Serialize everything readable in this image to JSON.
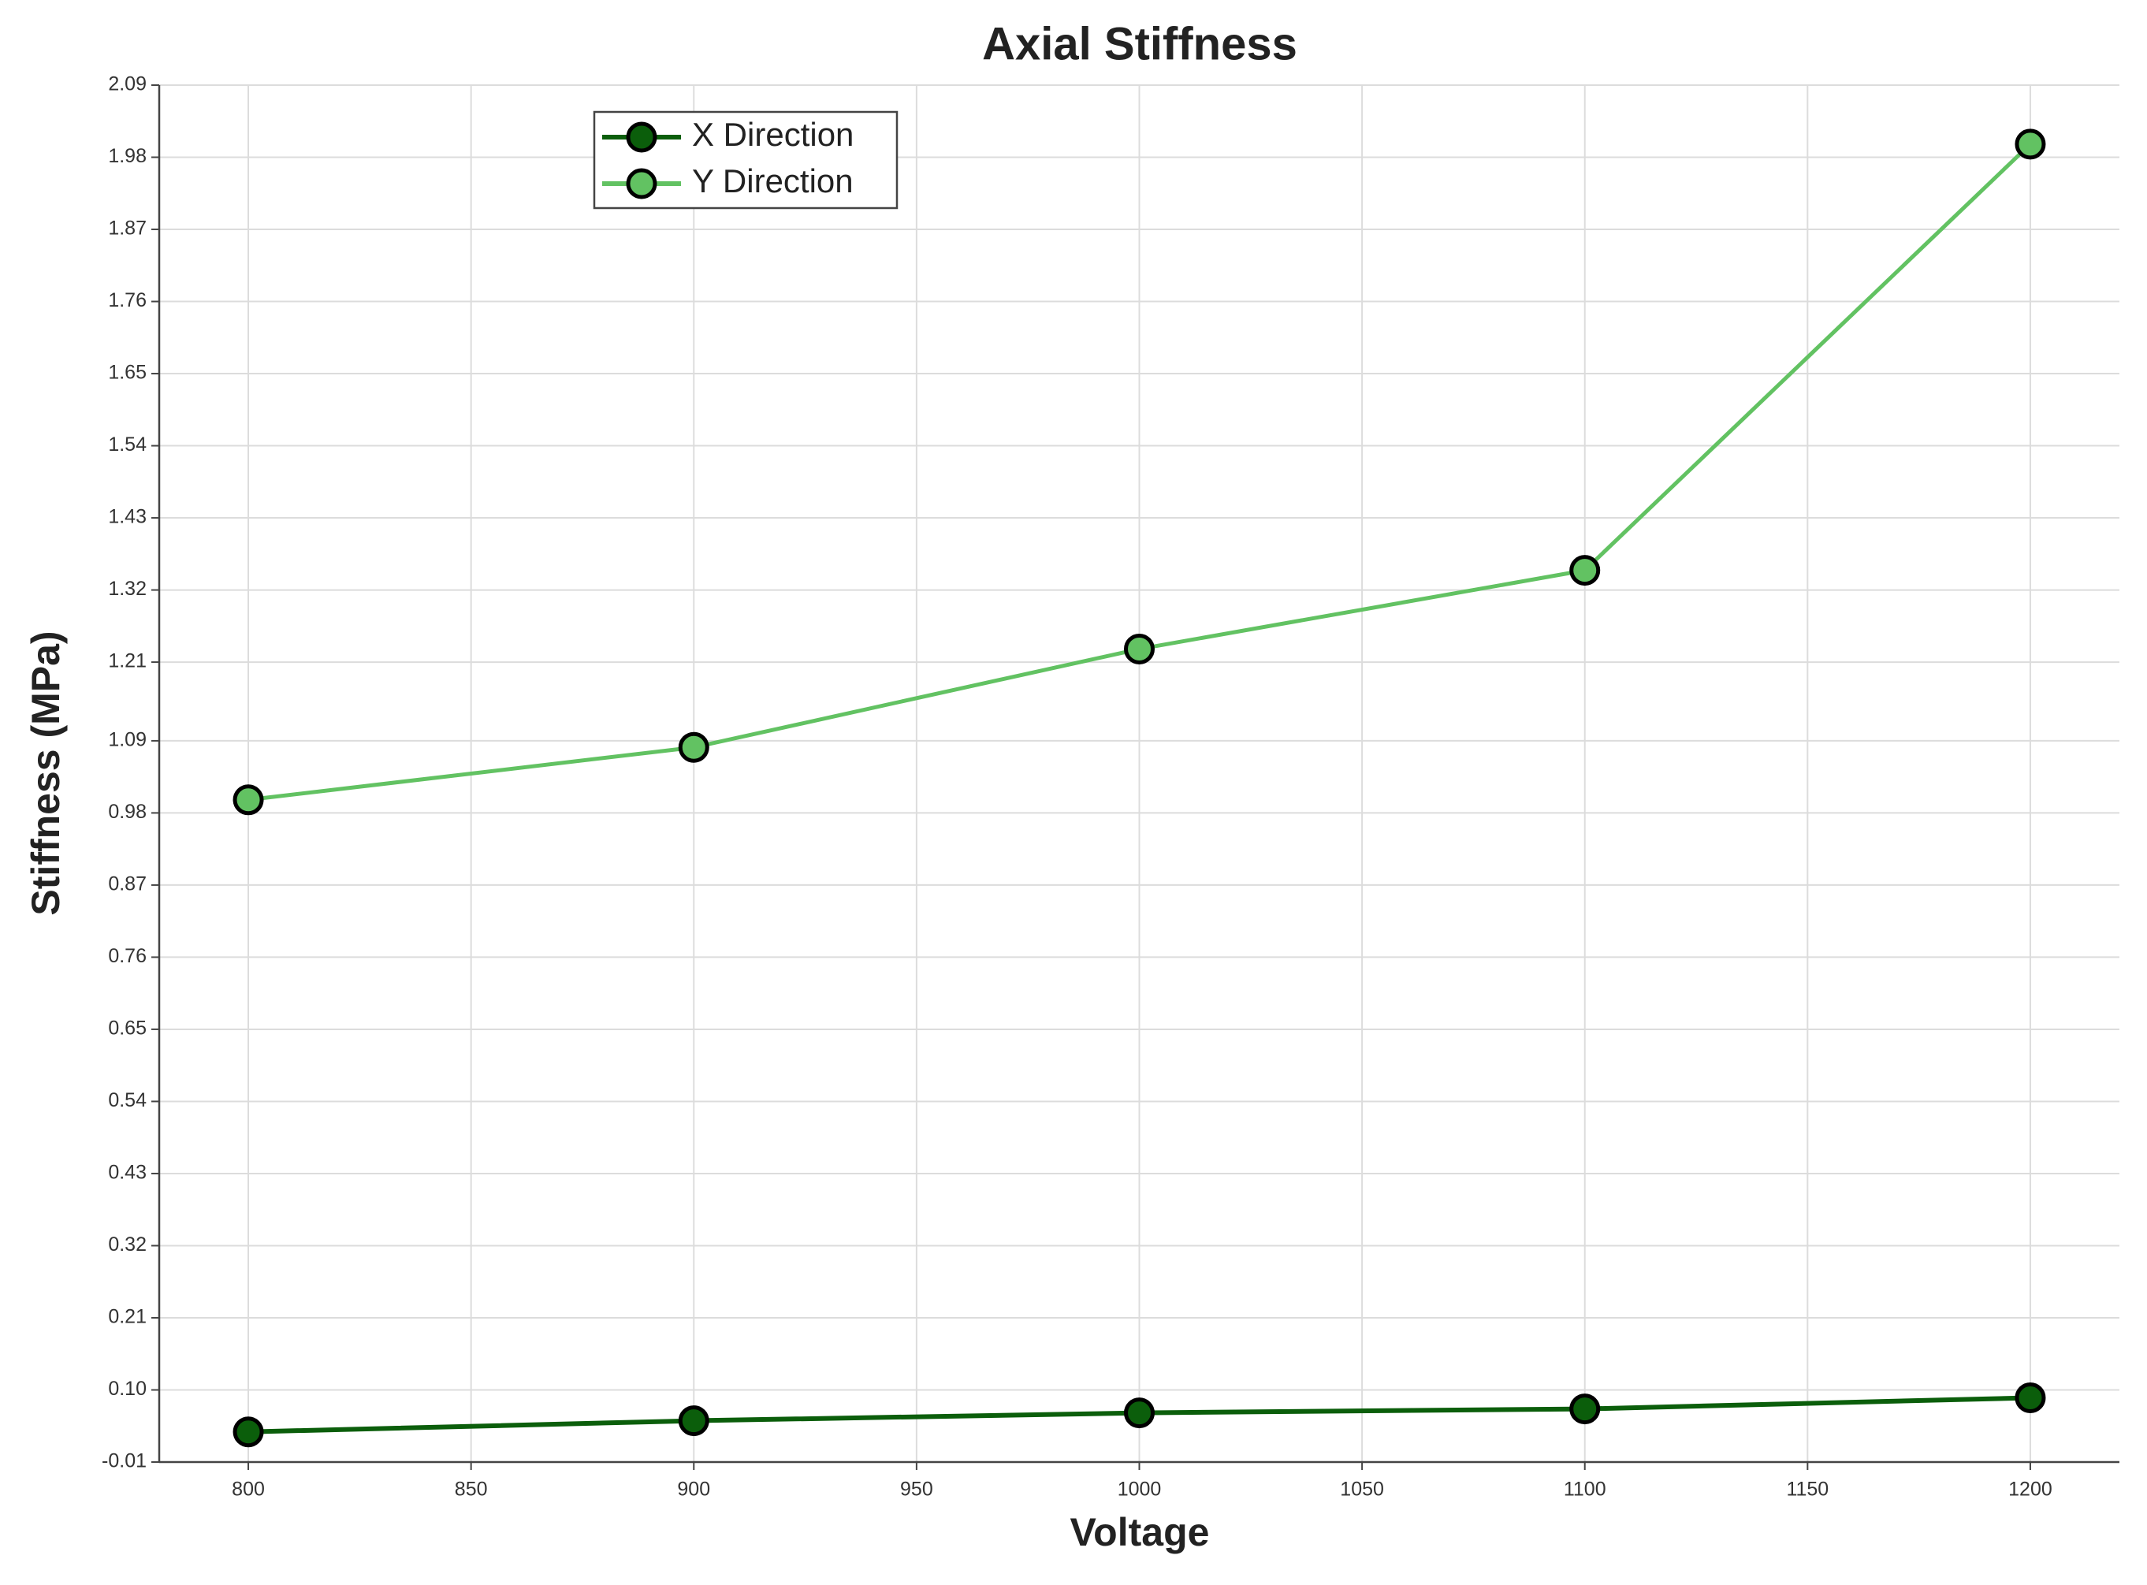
{
  "chart_data": {
    "type": "line",
    "title": "Axial Stiffness",
    "x_label": "Voltage",
    "y_label": "Stiffness (MPa)",
    "x": [
      800,
      900,
      1000,
      1100,
      1200
    ],
    "series": [
      {
        "name": "X Direction",
        "color": "#0b5e0b",
        "values": [
          0.036,
          0.053,
          0.065,
          0.071,
          0.088
        ]
      },
      {
        "name": "Y Direction",
        "color": "#62c262",
        "values": [
          1.0,
          1.08,
          1.23,
          1.35,
          2.0
        ]
      }
    ],
    "xlim": [
      780,
      1220
    ],
    "xticks": [
      800,
      850,
      900,
      950,
      1000,
      1050,
      1100,
      1150,
      1200
    ],
    "ylim": [
      -0.01,
      2.09
    ],
    "yticks": [
      -0.01,
      {
        "value": 0.1,
        "label": "0.10"
      },
      0.21,
      0.32,
      0.43,
      0.54,
      0.65,
      0.76,
      0.87,
      0.98,
      1.09,
      1.21,
      1.32,
      1.43,
      1.54,
      1.65,
      1.76,
      1.87,
      1.98,
      2.09
    ],
    "grid": true,
    "legend": "upper left"
  }
}
